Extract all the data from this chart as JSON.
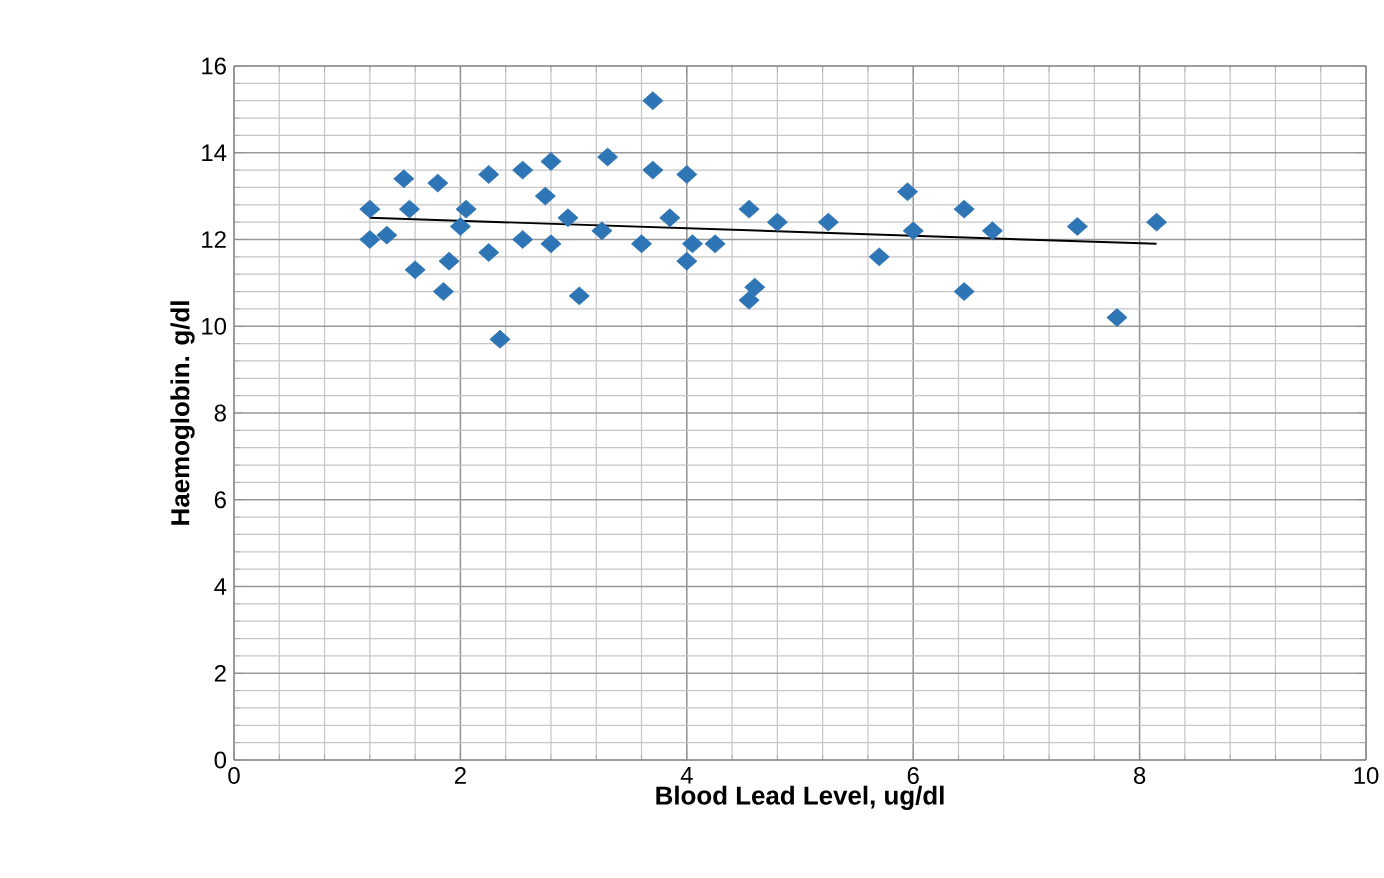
{
  "chart_data": {
    "type": "scatter",
    "xlabel": "Blood Lead Level, ug/dl",
    "ylabel": "Haemoglobin. g/dl",
    "xlim": [
      0,
      10
    ],
    "ylim": [
      0,
      16
    ],
    "xticks": [
      0,
      2,
      4,
      6,
      8,
      10
    ],
    "yticks": [
      0,
      2,
      4,
      6,
      8,
      10,
      12,
      14,
      16
    ],
    "grid": true,
    "marker": "diamond",
    "series": [
      {
        "color": "#2e75b6",
        "x": [
          1.2,
          1.2,
          1.35,
          1.5,
          1.55,
          1.6,
          1.8,
          1.85,
          1.9,
          2.0,
          2.05,
          2.25,
          2.25,
          2.35,
          2.55,
          2.55,
          2.75,
          2.8,
          2.8,
          2.95,
          3.05,
          3.25,
          3.3,
          3.6,
          3.7,
          3.7,
          3.85,
          4.0,
          4.0,
          4.05,
          4.25,
          4.55,
          4.55,
          4.6,
          4.8,
          5.25,
          5.7,
          5.95,
          6.0,
          6.45,
          6.45,
          6.7,
          7.45,
          7.8,
          8.15
        ],
        "values": [
          12.7,
          12.0,
          12.1,
          13.4,
          12.7,
          11.3,
          13.3,
          10.8,
          11.5,
          12.3,
          12.7,
          11.7,
          13.5,
          9.7,
          13.6,
          12.0,
          13.0,
          13.8,
          11.9,
          12.5,
          10.7,
          12.2,
          13.9,
          11.9,
          15.2,
          13.6,
          12.5,
          11.5,
          13.5,
          11.9,
          11.9,
          12.7,
          10.6,
          10.9,
          12.4,
          12.4,
          11.6,
          13.1,
          12.2,
          12.7,
          10.8,
          12.2,
          12.3,
          10.2,
          12.4
        ]
      },
      {
        "type": "line",
        "color": "#000000",
        "marker": "none",
        "x": [
          1.2,
          8.15
        ],
        "values": [
          12.5,
          11.9
        ]
      }
    ]
  }
}
